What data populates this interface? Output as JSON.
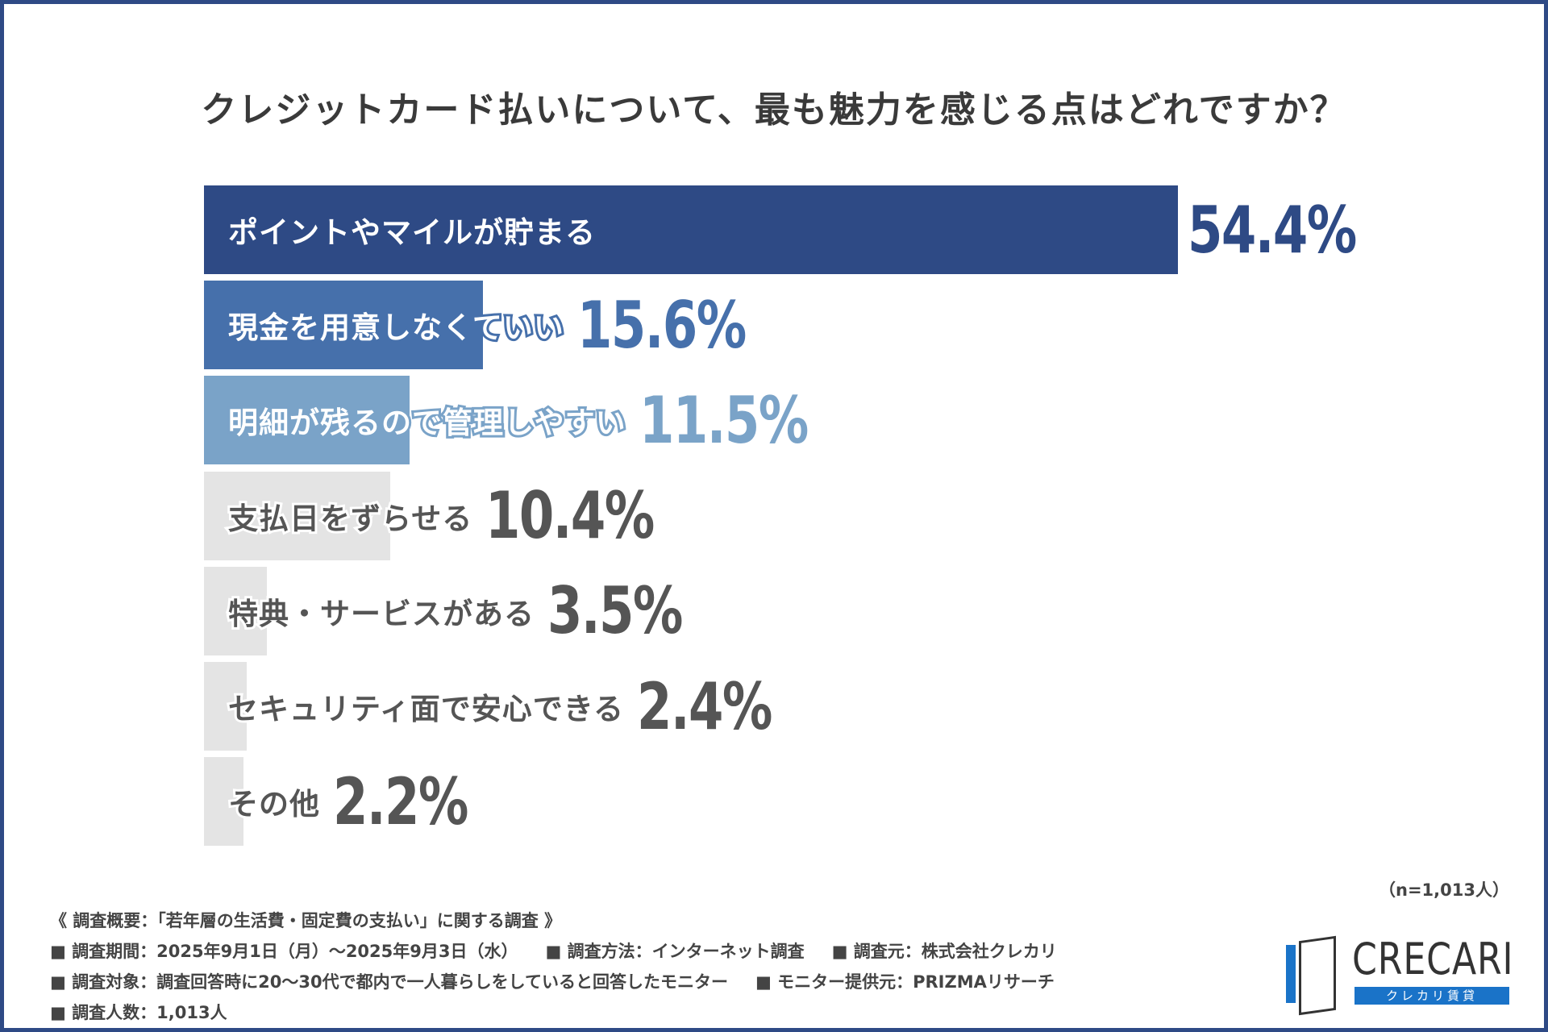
{
  "chart_data": {
    "type": "bar",
    "orientation": "horizontal",
    "title": "クレジットカード払いについて、最も魅力を感じる点はどれですか？",
    "categories": [
      "ポイントやマイルが貯まる",
      "現金を用意しなくていい",
      "明細が残るので管理しやすい",
      "支払日をずらせる",
      "特典・サービスがある",
      "セキュリティ面で安心できる",
      "その他"
    ],
    "values": [
      54.4,
      15.6,
      11.5,
      10.4,
      3.5,
      2.4,
      2.2
    ],
    "value_labels": [
      "54.4%",
      "15.6%",
      "11.5%",
      "10.4%",
      "3.5%",
      "2.4%",
      "2.2%"
    ],
    "unit": "%",
    "colors": [
      "#2e4a85",
      "#4670ab",
      "#7aa3c8",
      "#e4e4e4",
      "#e4e4e4",
      "#e4e4e4",
      "#e4e4e4"
    ],
    "label_colors": [
      "#2e4a85",
      "#4670ab",
      "#7aa3c8",
      "#555555",
      "#555555",
      "#555555",
      "#555555"
    ],
    "xlim": [
      0,
      54.4
    ],
    "grid": false
  },
  "sample": "（n=1,013人）",
  "footer": {
    "heading": "《 調査概要：「若年層の生活費・固定費の支払い」に関する調査 》",
    "period": "■ 調査期間：2025年9月1日（月）～2025年9月3日（水）",
    "method": "■ 調査方法：インターネット調査",
    "source": "■ 調査元：株式会社クレカリ",
    "target": "■ 調査対象：調査回答時に20～30代で都内で一人暮らしをしていると回答したモニター",
    "provider": "■ モニター提供元：PRIZMAリサーチ",
    "count": "■ 調査人数：1,013人"
  },
  "logo": {
    "word": "CRECARI",
    "sub": "クレカリ賃貸"
  }
}
